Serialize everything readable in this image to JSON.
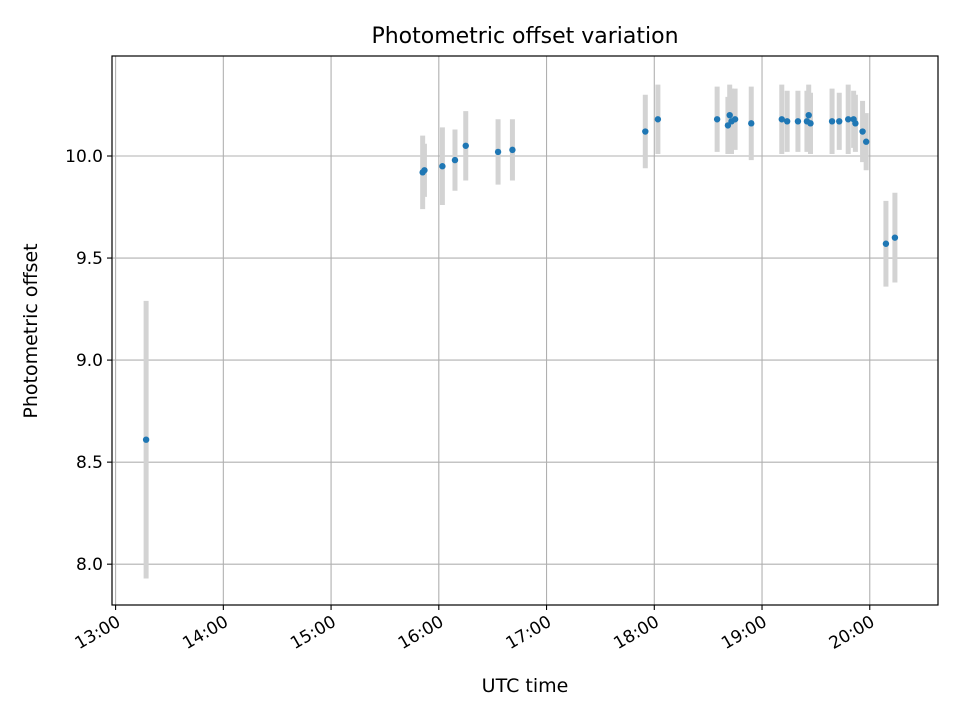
{
  "chart_data": {
    "type": "scatter",
    "title": "Photometric offset variation",
    "xlabel": "UTC time",
    "ylabel": "Photometric offset",
    "x_axis": {
      "kind": "time",
      "min": "12:58",
      "max": "20:38",
      "ticks": [
        "13:00",
        "14:00",
        "15:00",
        "16:00",
        "17:00",
        "18:00",
        "19:00",
        "20:00"
      ]
    },
    "y_axis": {
      "min": 7.8,
      "max": 10.49,
      "ticks": [
        "8.0",
        "8.5",
        "9.0",
        "9.5",
        "10.0"
      ]
    },
    "grid": true,
    "colors": {
      "point": "#1f77b4",
      "errorbar": "#d3d3d3",
      "grid": "#b0b0b0",
      "axis": "#000000"
    },
    "points": [
      {
        "t": "13:17",
        "y": 8.61,
        "err": 0.68
      },
      {
        "t": "15:51",
        "y": 9.92,
        "err": 0.18
      },
      {
        "t": "15:52",
        "y": 9.93,
        "err": 0.13
      },
      {
        "t": "16:02",
        "y": 9.95,
        "err": 0.19
      },
      {
        "t": "16:09",
        "y": 9.98,
        "err": 0.15
      },
      {
        "t": "16:15",
        "y": 10.05,
        "err": 0.17
      },
      {
        "t": "16:33",
        "y": 10.02,
        "err": 0.16
      },
      {
        "t": "16:41",
        "y": 10.03,
        "err": 0.15
      },
      {
        "t": "17:55",
        "y": 10.12,
        "err": 0.18
      },
      {
        "t": "18:02",
        "y": 10.18,
        "err": 0.17
      },
      {
        "t": "18:35",
        "y": 10.18,
        "err": 0.16
      },
      {
        "t": "18:41",
        "y": 10.15,
        "err": 0.14
      },
      {
        "t": "18:42",
        "y": 10.2,
        "err": 0.15
      },
      {
        "t": "18:43",
        "y": 10.17,
        "err": 0.16
      },
      {
        "t": "18:45",
        "y": 10.18,
        "err": 0.15
      },
      {
        "t": "18:54",
        "y": 10.16,
        "err": 0.18
      },
      {
        "t": "19:11",
        "y": 10.18,
        "err": 0.17
      },
      {
        "t": "19:14",
        "y": 10.17,
        "err": 0.15
      },
      {
        "t": "19:20",
        "y": 10.17,
        "err": 0.15
      },
      {
        "t": "19:25",
        "y": 10.17,
        "err": 0.15
      },
      {
        "t": "19:26",
        "y": 10.2,
        "err": 0.15
      },
      {
        "t": "19:27",
        "y": 10.16,
        "err": 0.15
      },
      {
        "t": "19:39",
        "y": 10.17,
        "err": 0.16
      },
      {
        "t": "19:43",
        "y": 10.17,
        "err": 0.14
      },
      {
        "t": "19:48",
        "y": 10.18,
        "err": 0.17
      },
      {
        "t": "19:51",
        "y": 10.18,
        "err": 0.14
      },
      {
        "t": "19:52",
        "y": 10.16,
        "err": 0.14
      },
      {
        "t": "19:56",
        "y": 10.12,
        "err": 0.15
      },
      {
        "t": "19:58",
        "y": 10.07,
        "err": 0.14
      },
      {
        "t": "20:09",
        "y": 9.57,
        "err": 0.21
      },
      {
        "t": "20:14",
        "y": 9.6,
        "err": 0.22
      }
    ]
  }
}
